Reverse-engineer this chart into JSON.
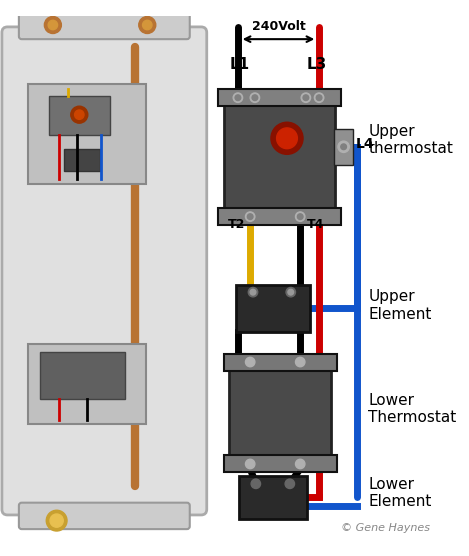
{
  "bg_color": "#ffffff",
  "label_240volt": "240Volt",
  "label_L1": "L1",
  "label_L3": "L3",
  "label_L4": "L4",
  "label_T2": "T2",
  "label_T4": "T4",
  "label_upper_thermostat": "Upper\nthermostat",
  "label_upper_element": "Upper\nElement",
  "label_lower_thermostat": "Lower\nThermostat",
  "label_lower_element": "Lower\nElement",
  "label_credit": "© Gene Haynes",
  "color_black": "#000000",
  "color_red": "#cc0000",
  "color_blue": "#1155cc",
  "color_yellow": "#ddaa00",
  "color_copper": "#b87333",
  "color_darkgray": "#555555",
  "wire_lw": 5.0
}
